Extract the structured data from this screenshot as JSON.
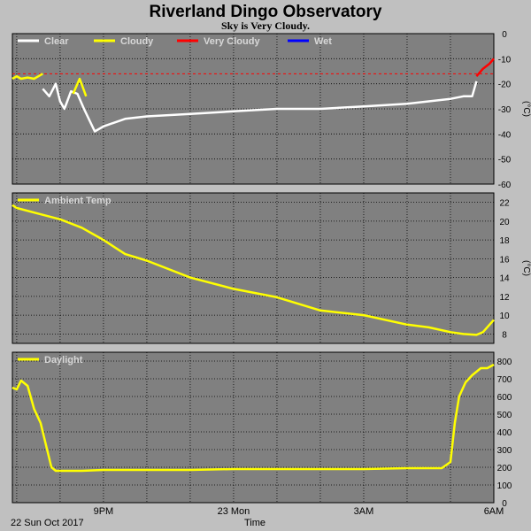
{
  "page": {
    "title": "Riverland Dingo Observatory",
    "subtitle": "Sky is Very Cloudy."
  },
  "colors": {
    "background": "#c0c0c0",
    "plot_background": "#808080",
    "grid": "#000000",
    "clear": "#ffffff",
    "cloudy": "#ffff00",
    "very_cloudy": "#ff0000",
    "wet": "#0000ff"
  },
  "x_axis": {
    "label": "Time",
    "date_label": "22 Sun Oct 2017",
    "ticks": [
      "9PM",
      "23 Mon",
      "3AM",
      "6AM"
    ]
  },
  "chart_data": [
    {
      "type": "line",
      "id": "sky",
      "legend": [
        "Clear",
        "Cloudy",
        "Very Cloudy",
        "Wet"
      ],
      "ylabel": "(°C)",
      "ylim": [
        -60,
        0
      ],
      "yticks": [
        0,
        -10,
        -20,
        -30,
        -40,
        -50,
        -60
      ],
      "threshold": -16,
      "grid": true,
      "series": [
        {
          "name": "Cloudy",
          "color": "#ffff00",
          "x": [
            18.9,
            19.0,
            19.1,
            19.25,
            19.4,
            19.5,
            19.6
          ],
          "y": [
            -18,
            -17,
            -18,
            -17.5,
            -18,
            -17,
            -16
          ]
        },
        {
          "name": "Clear",
          "color": "#ffffff",
          "x": [
            19.6,
            19.75,
            19.9,
            20.0,
            20.1,
            20.25,
            20.4,
            20.55,
            20.8,
            21.0,
            21.5,
            22.0,
            23.0,
            24.0,
            25.0,
            26.0,
            27.0,
            28.0,
            29.0,
            29.3,
            29.5,
            29.6
          ],
          "y": [
            -22,
            -25,
            -20,
            -27,
            -30,
            -23,
            -24,
            -30,
            -39,
            -37,
            -34,
            -33,
            -32,
            -31,
            -30,
            -30,
            -29,
            -28,
            -26,
            -25,
            -25,
            -19
          ]
        },
        {
          "name": "Cloudy",
          "color": "#ffff00",
          "x": [
            20.3,
            20.45,
            20.6
          ],
          "y": [
            -24,
            -18,
            -25
          ]
        },
        {
          "name": "Very Cloudy",
          "color": "#ff0000",
          "x": [
            29.6,
            29.75,
            29.9,
            30.0
          ],
          "y": [
            -17,
            -14,
            -12,
            -10
          ]
        }
      ]
    },
    {
      "type": "line",
      "id": "ambient",
      "legend": [
        "Ambient Temp"
      ],
      "ylabel": "(°C)",
      "ylim": [
        7,
        23
      ],
      "yticks": [
        22,
        20,
        18,
        16,
        14,
        12,
        10,
        8
      ],
      "grid": true,
      "series": [
        {
          "name": "Ambient Temp",
          "color": "#ffff00",
          "x": [
            18.9,
            19.0,
            19.5,
            20.0,
            20.5,
            21.0,
            21.5,
            22.0,
            23.0,
            24.0,
            25.0,
            26.0,
            27.0,
            28.0,
            28.5,
            29.0,
            29.3,
            29.6,
            29.75,
            30.0
          ],
          "y": [
            21.7,
            21.4,
            20.8,
            20.2,
            19.3,
            18.0,
            16.5,
            15.8,
            14.0,
            12.8,
            11.9,
            10.5,
            10.0,
            9.0,
            8.7,
            8.2,
            8.0,
            7.9,
            8.2,
            9.5
          ]
        }
      ]
    },
    {
      "type": "line",
      "id": "daylight",
      "legend": [
        "Daylight"
      ],
      "ylabel": "",
      "ylim": [
        0,
        850
      ],
      "yticks": [
        800,
        700,
        600,
        500,
        400,
        300,
        200,
        100,
        0
      ],
      "grid": true,
      "series": [
        {
          "name": "Daylight",
          "color": "#ffff00",
          "x": [
            18.9,
            19.0,
            19.1,
            19.25,
            19.4,
            19.55,
            19.7,
            19.8,
            19.9,
            20.05,
            20.5,
            21.0,
            22.0,
            23.0,
            24.0,
            25.0,
            26.0,
            27.0,
            28.0,
            28.8,
            29.0,
            29.1,
            29.2,
            29.35,
            29.5,
            29.7,
            29.85,
            30.0
          ],
          "y": [
            650,
            640,
            690,
            660,
            530,
            450,
            300,
            200,
            180,
            180,
            180,
            185,
            185,
            185,
            190,
            190,
            190,
            190,
            195,
            195,
            230,
            450,
            600,
            680,
            720,
            760,
            760,
            780
          ]
        }
      ]
    }
  ]
}
